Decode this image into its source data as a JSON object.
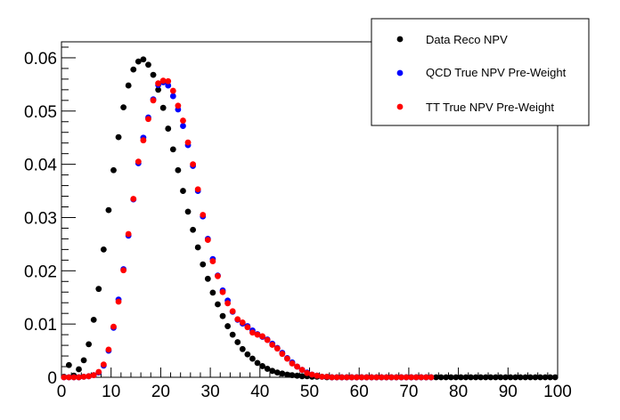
{
  "chart_data": {
    "type": "scatter",
    "title": "",
    "xlabel": "",
    "ylabel": "",
    "xlim": [
      0,
      100
    ],
    "ylim": [
      0,
      0.063
    ],
    "xticks": [
      0,
      10,
      20,
      30,
      40,
      50,
      60,
      70,
      80,
      90,
      100
    ],
    "xtick_labels": [
      "0",
      "10",
      "20",
      "30",
      "40",
      "50",
      "60",
      "70",
      "80",
      "90",
      "100"
    ],
    "yticks": [
      0,
      0.01,
      0.02,
      0.03,
      0.04,
      0.05,
      0.06
    ],
    "ytick_labels": [
      "0",
      "0.01",
      "0.02",
      "0.03",
      "0.04",
      "0.05",
      "0.06"
    ],
    "grid": false,
    "legend_position": "top-right",
    "series": [
      {
        "name": "Data Reco NPV",
        "color": "#000000",
        "x": [
          0.5,
          1.5,
          2.5,
          3.5,
          4.5,
          5.5,
          6.5,
          7.5,
          8.5,
          9.5,
          10.5,
          11.5,
          12.5,
          13.5,
          14.5,
          15.5,
          16.5,
          17.5,
          18.5,
          19.5,
          20.5,
          21.5,
          22.5,
          23.5,
          24.5,
          25.5,
          26.5,
          27.5,
          28.5,
          29.5,
          30.5,
          31.5,
          32.5,
          33.5,
          34.5,
          35.5,
          36.5,
          37.5,
          38.5,
          39.5,
          40.5,
          41.5,
          42.5,
          43.5,
          44.5,
          45.5,
          46.5,
          47.5,
          48.5,
          49.5,
          50.5,
          51.5,
          52.5,
          53.5,
          54.5,
          55.5,
          56.5,
          57.5,
          58.5,
          59.5,
          60.5,
          61.5,
          62.5,
          63.5,
          64.5,
          65.5,
          66.5,
          67.5,
          68.5,
          69.5,
          70.5,
          71.5,
          72.5,
          73.5,
          74.5,
          75.5,
          76.5,
          77.5,
          78.5,
          79.5,
          80.5,
          81.5,
          82.5,
          83.5,
          84.5,
          85.5,
          86.5,
          87.5,
          88.5,
          89.5,
          90.5,
          91.5,
          92.5,
          93.5,
          94.5,
          95.5,
          96.5,
          97.5,
          98.5,
          99.5
        ],
        "y": [
          0.0001,
          0.0023,
          0.0003,
          0.0015,
          0.0032,
          0.0062,
          0.0108,
          0.0166,
          0.024,
          0.0314,
          0.0389,
          0.0451,
          0.0507,
          0.0548,
          0.0578,
          0.0593,
          0.0597,
          0.0587,
          0.0568,
          0.054,
          0.0506,
          0.0467,
          0.0428,
          0.0389,
          0.035,
          0.0311,
          0.0277,
          0.0244,
          0.0212,
          0.0185,
          0.0159,
          0.0137,
          0.0115,
          0.0096,
          0.008,
          0.0066,
          0.0053,
          0.0043,
          0.0035,
          0.0027,
          0.0021,
          0.0016,
          0.0012,
          0.0009,
          0.0007,
          0.0005,
          0.0004,
          0.0003,
          0.0002,
          0.0002,
          0.0001,
          0.0001,
          0.0001,
          0,
          0,
          0,
          0,
          0,
          0,
          0,
          0,
          0,
          0,
          0,
          0,
          0,
          0,
          0,
          0,
          0,
          0,
          0,
          0,
          0,
          0,
          0,
          0,
          0,
          0,
          0,
          0,
          0,
          0,
          0,
          0,
          0,
          0,
          0,
          0,
          0,
          0,
          0,
          0,
          0,
          0,
          0,
          0,
          0,
          0,
          0
        ]
      },
      {
        "name": "QCD True NPV Pre-Weight",
        "color": "#0000ff",
        "x": [
          0.5,
          1.5,
          2.5,
          3.5,
          4.5,
          5.5,
          6.5,
          7.5,
          8.5,
          9.5,
          10.5,
          11.5,
          12.5,
          13.5,
          14.5,
          15.5,
          16.5,
          17.5,
          18.5,
          19.5,
          20.5,
          21.5,
          22.5,
          23.5,
          24.5,
          25.5,
          26.5,
          27.5,
          28.5,
          29.5,
          30.5,
          31.5,
          32.5,
          33.5,
          34.5,
          35.5,
          36.5,
          37.5,
          38.5,
          39.5,
          40.5,
          41.5,
          42.5,
          43.5,
          44.5,
          45.5,
          46.5,
          47.5,
          48.5,
          49.5,
          50.5,
          51.5,
          52.5,
          53.5,
          54.5,
          55.5,
          56.5,
          57.5,
          58.5,
          59.5,
          60.5,
          61.5,
          62.5,
          63.5,
          64.5,
          65.5,
          66.5,
          67.5,
          68.5,
          69.5,
          70.5,
          71.5,
          72.5,
          73.5,
          74.5
        ],
        "y": [
          0,
          0,
          0,
          0,
          0.0001,
          0.0002,
          0.0004,
          0.0009,
          0.0022,
          0.005,
          0.0093,
          0.0146,
          0.0203,
          0.0266,
          0.0334,
          0.0402,
          0.045,
          0.0488,
          0.0522,
          0.0549,
          0.0554,
          0.0548,
          0.0528,
          0.0503,
          0.0472,
          0.0436,
          0.0397,
          0.035,
          0.0302,
          0.026,
          0.0222,
          0.0191,
          0.0163,
          0.0144,
          0.0123,
          0.0108,
          0.0101,
          0.0096,
          0.0088,
          0.0081,
          0.0076,
          0.0071,
          0.0063,
          0.0055,
          0.0046,
          0.0036,
          0.0028,
          0.002,
          0.0014,
          0.0009,
          0.0005,
          0.0003,
          0.0001,
          0.0001,
          0,
          0,
          0,
          0,
          0,
          0,
          0,
          0,
          0,
          0,
          0,
          0,
          0,
          0,
          0,
          0,
          0,
          0,
          0,
          0,
          0
        ]
      },
      {
        "name": "TT True NPV Pre-Weight",
        "color": "#ff0000",
        "x": [
          0.5,
          1.5,
          2.5,
          3.5,
          4.5,
          5.5,
          6.5,
          7.5,
          8.5,
          9.5,
          10.5,
          11.5,
          12.5,
          13.5,
          14.5,
          15.5,
          16.5,
          17.5,
          18.5,
          19.5,
          20.5,
          21.5,
          22.5,
          23.5,
          24.5,
          25.5,
          26.5,
          27.5,
          28.5,
          29.5,
          30.5,
          31.5,
          32.5,
          33.5,
          34.5,
          35.5,
          36.5,
          37.5,
          38.5,
          39.5,
          40.5,
          41.5,
          42.5,
          43.5,
          44.5,
          45.5,
          46.5,
          47.5,
          48.5,
          49.5,
          50.5,
          51.5,
          52.5,
          53.5,
          54.5,
          55.5,
          56.5,
          57.5,
          58.5,
          59.5,
          60.5,
          61.5,
          62.5,
          63.5,
          64.5,
          65.5,
          66.5,
          67.5,
          68.5,
          69.5,
          70.5,
          71.5,
          72.5,
          73.5,
          74.5
        ],
        "y": [
          0,
          0,
          0,
          0,
          0.0001,
          0.0002,
          0.0004,
          0.001,
          0.0024,
          0.0052,
          0.0095,
          0.0142,
          0.0201,
          0.0269,
          0.0335,
          0.0405,
          0.0445,
          0.0485,
          0.052,
          0.0552,
          0.0557,
          0.0556,
          0.0538,
          0.051,
          0.0482,
          0.0441,
          0.04,
          0.0353,
          0.0305,
          0.0258,
          0.0218,
          0.019,
          0.016,
          0.0139,
          0.0124,
          0.0109,
          0.0103,
          0.0094,
          0.0084,
          0.008,
          0.0077,
          0.007,
          0.0061,
          0.0054,
          0.0044,
          0.0035,
          0.0026,
          0.002,
          0.0014,
          0.0008,
          0.0005,
          0.0003,
          0.0001,
          0.0001,
          0,
          0,
          0,
          0,
          0,
          0,
          0,
          0,
          0,
          0,
          0,
          0,
          0,
          0,
          0,
          0,
          0,
          0,
          0,
          0,
          0
        ]
      }
    ]
  }
}
